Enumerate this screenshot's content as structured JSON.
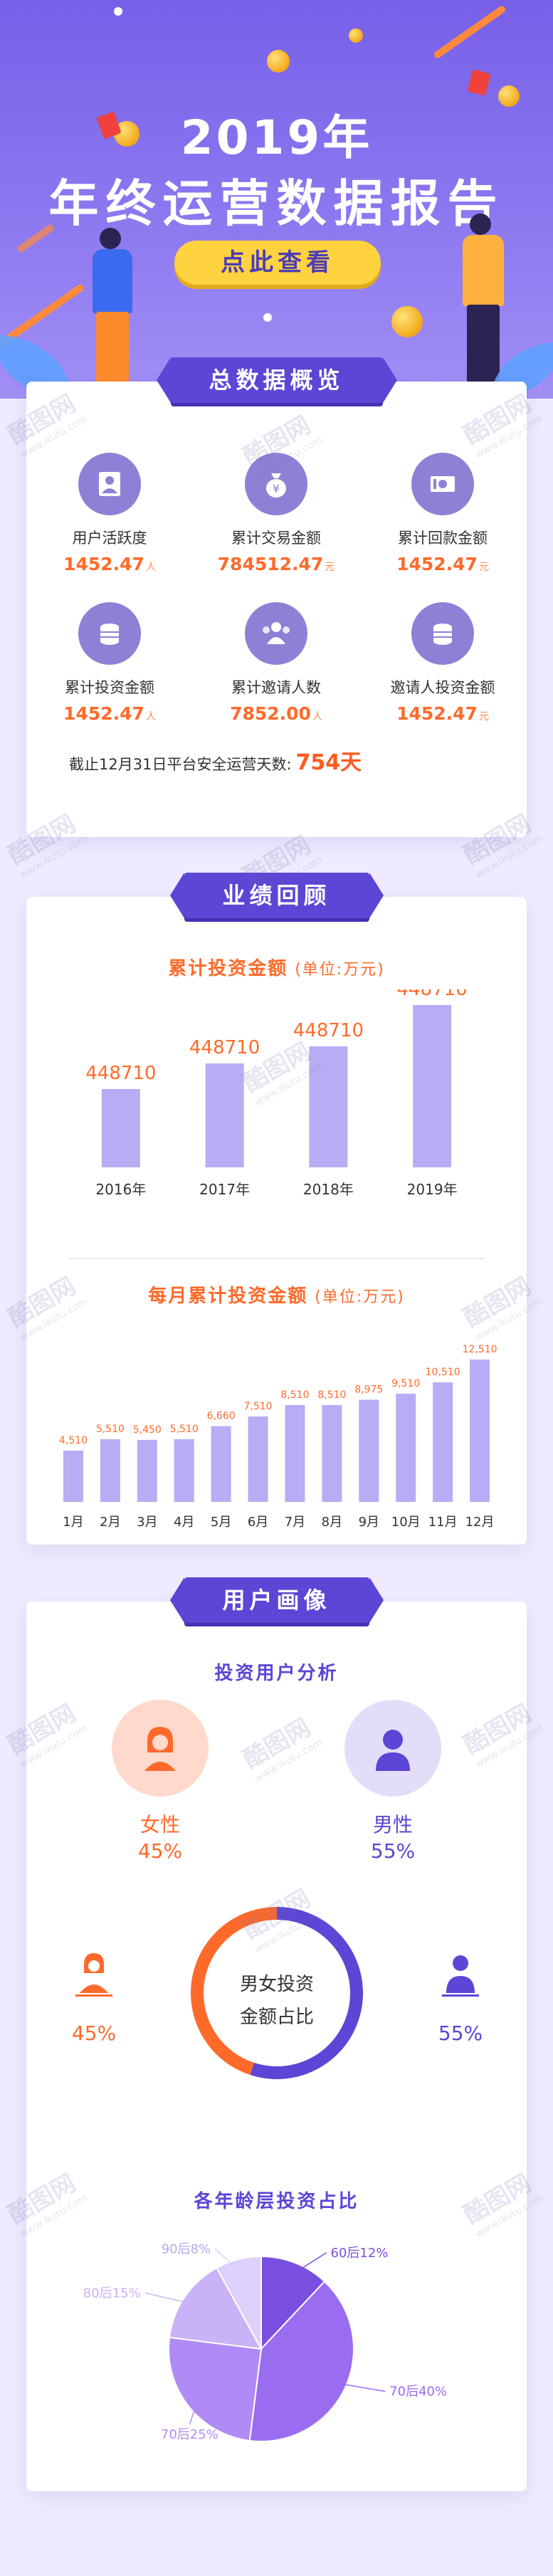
{
  "hero": {
    "title_line1": "2019年",
    "title_line2": "年终运营数据报告",
    "button_label": "点此查看"
  },
  "overview": {
    "tab_label": "总数据概览",
    "stats": [
      {
        "label": "用户活跃度",
        "value": "1452.47",
        "unit": "人",
        "icon": "user-badge-icon"
      },
      {
        "label": "累计交易金额",
        "value": "784512.47",
        "unit": "元",
        "icon": "money-bag-icon"
      },
      {
        "label": "累计回款金额",
        "value": "1452.47",
        "unit": "元",
        "icon": "banknote-icon"
      },
      {
        "label": "累计投资金额",
        "value": "1452.47",
        "unit": "人",
        "icon": "coin-stack-icon"
      },
      {
        "label": "累计邀请人数",
        "value": "7852.00",
        "unit": "人",
        "icon": "users-group-icon"
      },
      {
        "label": "邀请人投资金额",
        "value": "1452.47",
        "unit": "元",
        "icon": "coin-stack-icon"
      }
    ],
    "days_text": "截止12月31日平台安全运营天数:",
    "days_value": "754天"
  },
  "performance": {
    "tab_label": "业绩回顾"
  },
  "users": {
    "tab_label": "用户画像",
    "invest_title": "投资用户分析",
    "female_label": "女性",
    "female_pct": "45%",
    "male_label": "男性",
    "male_pct": "55%",
    "donut_line1": "男女投资",
    "donut_line2": "金额占比",
    "donut_left_pct": "45%",
    "donut_right_pct": "55%",
    "age_title": "各年龄层投资占比"
  },
  "colors": {
    "accent": "#5b46d6",
    "orange": "#ff6a2a",
    "bar": "#b7adf5",
    "female": "#ff6a2a",
    "male": "#5b46d6"
  },
  "chart_data": [
    {
      "type": "bar",
      "title": "累计投资金额",
      "unit_label": "(单位:万元)",
      "categories": [
        "2016年",
        "2017年",
        "2018年",
        "2019年"
      ],
      "values": [
        448710,
        448710,
        448710,
        448710
      ],
      "ylim": [
        0,
        448710
      ],
      "grid": false
    },
    {
      "type": "bar",
      "title": "每月累计投资金额",
      "unit_label": "(单位:万元)",
      "categories": [
        "1月",
        "2月",
        "3月",
        "4月",
        "5月",
        "6月",
        "7月",
        "8月",
        "9月",
        "10月",
        "11月",
        "12月"
      ],
      "values": [
        4510,
        5510,
        5450,
        5510,
        6660,
        7510,
        8510,
        8510,
        8975,
        9510,
        10510,
        12510
      ],
      "ylim": [
        0,
        12510
      ],
      "grid": false
    },
    {
      "type": "pie",
      "title": "男女投资金额占比",
      "categories": [
        "女性",
        "男性"
      ],
      "values": [
        45,
        55
      ],
      "colors": [
        "#ff6a2a",
        "#5b46d6"
      ]
    },
    {
      "type": "pie",
      "title": "各年龄层投资占比",
      "categories": [
        "60后",
        "70后",
        "70后",
        "80后",
        "90后"
      ],
      "values": [
        12,
        40,
        25,
        15,
        8
      ],
      "labels": [
        "60后12%",
        "70后40%",
        "70后25%",
        "80后15%",
        "90后8%"
      ],
      "colors": [
        "#7a4fe0",
        "#9a6cf0",
        "#b08af5",
        "#c9b2f8",
        "#ddd0fb"
      ]
    }
  ]
}
